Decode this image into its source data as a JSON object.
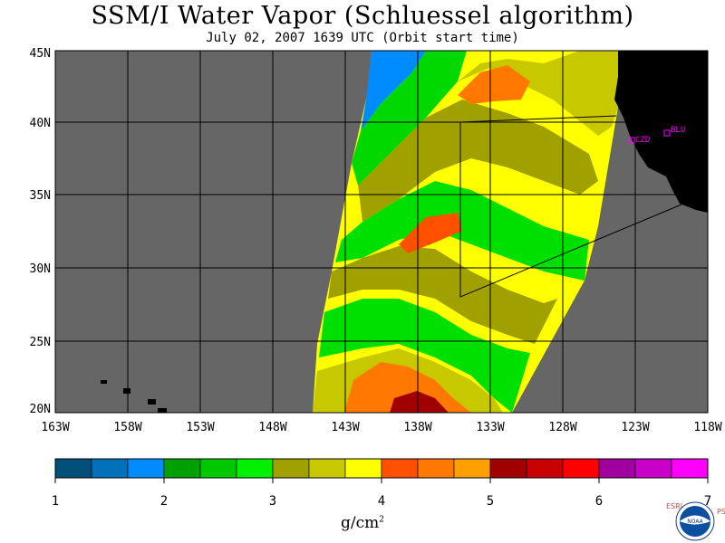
{
  "title": "SSM/I Water Vapor (Schluessel algorithm)",
  "subtitle": "July 02, 2007  1639 UTC  (Orbit start time)",
  "map": {
    "lat_labels": [
      "45N",
      "40N",
      "35N",
      "30N",
      "25N",
      "20N"
    ],
    "lon_labels": [
      "163W",
      "158W",
      "153W",
      "148W",
      "143W",
      "138W",
      "133W",
      "128W",
      "123W",
      "118W"
    ],
    "stations": [
      {
        "label": "CZD"
      },
      {
        "label": "BLU"
      }
    ],
    "colors": {
      "land": "#000000",
      "no_data": "#666666",
      "station": "#ff00ff",
      "grid": "#000000"
    }
  },
  "colorbar": {
    "ticks": [
      "1",
      "2",
      "3",
      "4",
      "5",
      "6",
      "7"
    ],
    "unit": "g/cm",
    "unit_exp": "2",
    "colors": [
      "#00507a",
      "#0070b8",
      "#008cff",
      "#00a000",
      "#00c800",
      "#00f000",
      "#a0a000",
      "#c8c800",
      "#ffff00",
      "#ff5000",
      "#ff7800",
      "#ffa000",
      "#a00000",
      "#c80000",
      "#ff0000",
      "#a000a0",
      "#c800c8",
      "#ff00ff"
    ]
  },
  "logo": {
    "left_text": "ESRL",
    "right_text": "PSD",
    "center_text": "NOAA"
  }
}
